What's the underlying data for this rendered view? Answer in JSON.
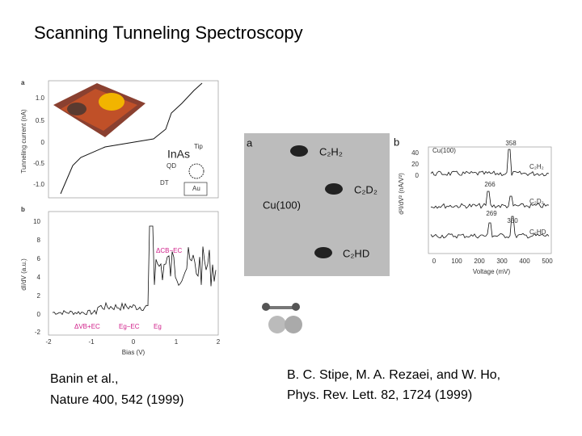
{
  "title": "Scanning Tunneling Spectroscopy",
  "left_figure": {
    "panel_a": {
      "label": "a",
      "y_axis_label": "Tunneling current (nA)",
      "yticks": [
        "1.0",
        "0.5",
        "0",
        "-0.5",
        "-1.0"
      ],
      "annotations": [
        "InAs",
        "Tip",
        "QD",
        "DT",
        "Au"
      ]
    },
    "panel_b": {
      "label": "b",
      "y_axis_label": "dI/dV (a.u.)",
      "yticks": [
        "10",
        "8",
        "6",
        "4",
        "2",
        "0",
        "-2"
      ],
      "xticks": [
        "-2",
        "-1",
        "0",
        "1",
        "2"
      ],
      "x_axis_label": "Bias (V)",
      "annotations": [
        "ΔCB−EC",
        "ΔVB+EC",
        "Eg−EC",
        "Eg"
      ]
    },
    "caption": [
      "Banin et al.,",
      "Nature 400, 542 (1999)"
    ]
  },
  "right_figure": {
    "panel_a": {
      "label": "a",
      "labels": [
        "C₂H₂",
        "C₂D₂",
        "Cu(100)",
        "C₂HD"
      ]
    },
    "panel_b": {
      "label": "b",
      "title": "Cu(100)",
      "yticks": [
        "40",
        "20",
        "0"
      ],
      "xticks": [
        "0",
        "100",
        "200",
        "300",
        "400",
        "500"
      ],
      "x_axis_label": "Voltage (mV)",
      "y_axis_label": "d²I/dV² (nA/V²)",
      "peaks": [
        "358",
        "266",
        "269",
        "360"
      ],
      "traces": [
        "C₂H₂",
        "C₂D₂",
        "C₂HD"
      ]
    },
    "caption": [
      "B. C. Stipe, M. A. Rezaei, and W. Ho,",
      "Phys. Rev. Lett. 82, 1724 (1999)"
    ]
  }
}
